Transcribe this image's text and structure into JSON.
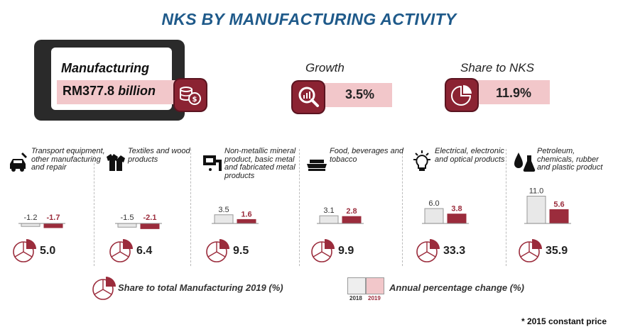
{
  "title": "NKS BY MANUFACTURING ACTIVITY",
  "manufacturing": {
    "label": "Manufacturing",
    "value": "RM377.8",
    "unit": "billion"
  },
  "kpis": {
    "growth": {
      "label": "Growth",
      "value": "3.5%"
    },
    "share": {
      "label": "Share to NKS",
      "value": "11.9%"
    }
  },
  "legend": {
    "share_label": "Share to total Manufacturing 2019 (%)",
    "change_label": "Annual percentage change (%)",
    "year_2018": "2018",
    "year_2019": "2019"
  },
  "footnote": "* 2015 constant price",
  "colors": {
    "bar_2018": "#e8e8e8",
    "bar_2019": "#9b2c3c",
    "accent_light": "#f2c7ca",
    "title": "#1f5a8a"
  },
  "chart_data": {
    "type": "bar",
    "categories": [
      "Transport equipment, other manufacturing and repair",
      "Textiles and wood products",
      "Non-metallic mineral product, basic metal and fabricated metal products",
      "Food, beverages and tobacco",
      "Electrical, electronic and optical products",
      "Petroleum, chemicals, rubber and plastic product"
    ],
    "series": [
      {
        "name": "2018",
        "values": [
          -1.2,
          -1.5,
          3.5,
          3.1,
          6.0,
          11.0
        ]
      },
      {
        "name": "2019",
        "values": [
          -1.7,
          -2.1,
          1.6,
          2.8,
          3.8,
          5.6
        ]
      }
    ],
    "share_2019": [
      5.0,
      6.4,
      9.5,
      9.9,
      33.3,
      35.9
    ],
    "ylabel": "Annual percentage change (%)"
  },
  "sectors": [
    {
      "name": "Transport equipment, other manufacturing and repair",
      "icon": "car-wrench-icon",
      "share": "5.0",
      "v2018": "-1.2",
      "v2019": "-1.7"
    },
    {
      "name": "Textiles and wood products",
      "icon": "clothing-icon",
      "share": "6.4",
      "v2018": "-1.5",
      "v2019": "-2.1"
    },
    {
      "name": "Non-metallic mineral product, basic metal and fabricated metal products",
      "icon": "welding-icon",
      "share": "9.5",
      "v2018": "3.5",
      "v2019": "1.6"
    },
    {
      "name": "Food, beverages and tobacco",
      "icon": "food-tray-icon",
      "share": "9.9",
      "v2018": "3.1",
      "v2019": "2.8"
    },
    {
      "name": "Electrical, electronic and optical products",
      "icon": "lightbulb-icon",
      "share": "33.3",
      "v2018": "6.0",
      "v2019": "3.8"
    },
    {
      "name": "Petroleum, chemicals, rubber and plastic product",
      "icon": "oil-flask-icon",
      "share": "35.9",
      "v2018": "11.0",
      "v2019": "5.6"
    }
  ]
}
